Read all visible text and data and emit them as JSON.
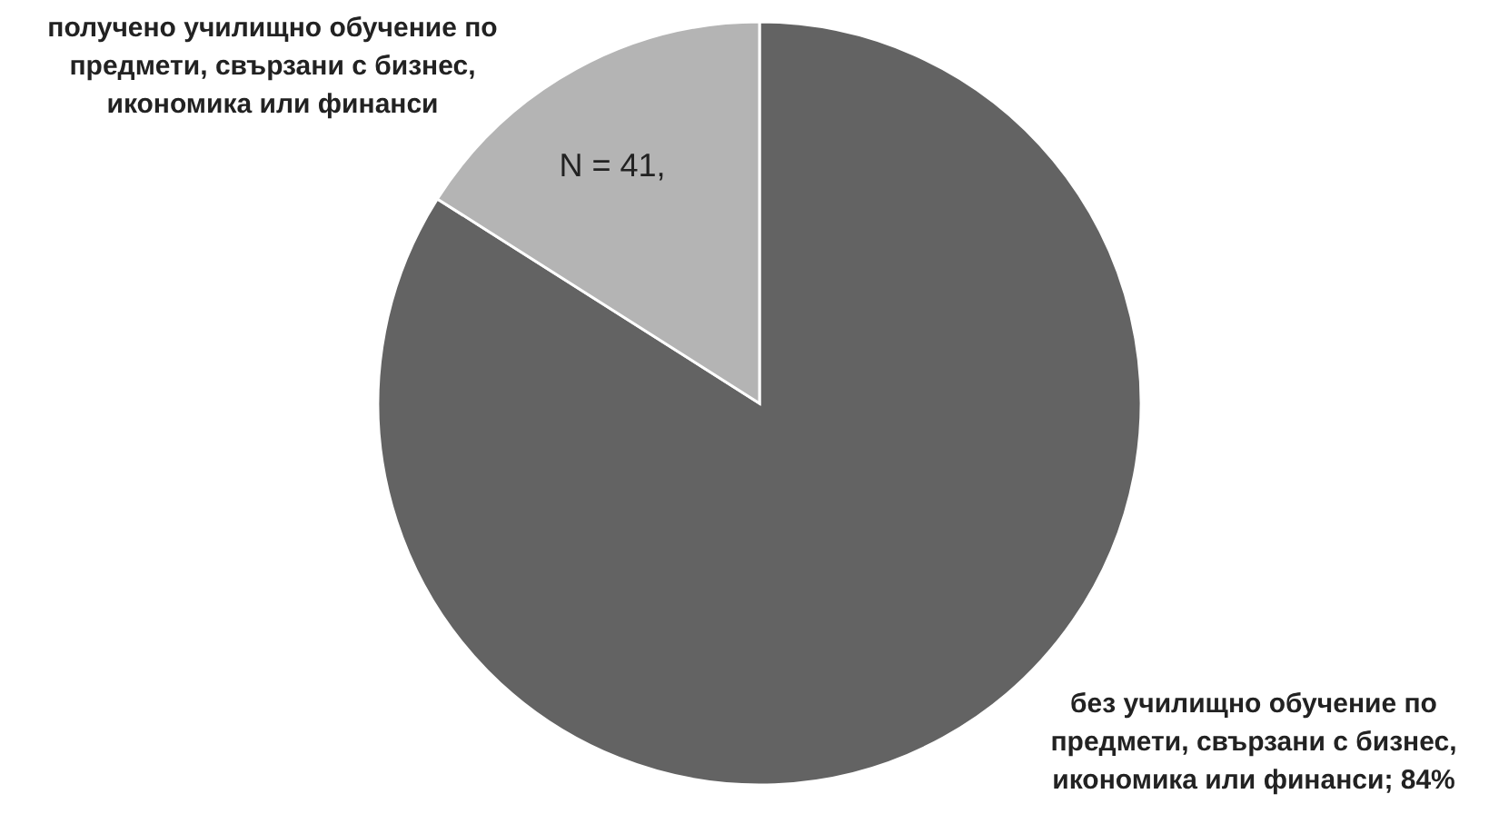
{
  "chart_data": {
    "type": "pie",
    "categories": [
      "без училищно обучение по предмети, свързани с бизнес, икономика или финанси",
      "получено  училищно обучение по предмети, свързани с бизнес, икономика или финанси"
    ],
    "values": [
      84,
      16
    ],
    "colors": [
      "#636363",
      "#b4b4b4"
    ],
    "value_labels": [
      "84%",
      null
    ],
    "annotations": [
      "N = 41,"
    ]
  }
}
